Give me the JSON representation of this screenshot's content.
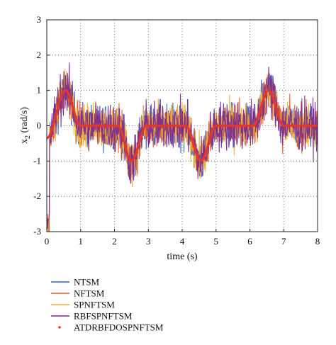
{
  "chart_data": {
    "type": "line",
    "title": "",
    "xlabel": "time (s)",
    "ylabel_main": "x",
    "ylabel_sub": "2",
    "ylabel_unit": " (rad/s)",
    "xlim": [
      0,
      8
    ],
    "ylim": [
      -3,
      3
    ],
    "xticks": [
      "0",
      "1",
      "2",
      "3",
      "4",
      "5",
      "6",
      "7",
      "8"
    ],
    "yticks": [
      "-3",
      "-2",
      "-1",
      "0",
      "1",
      "2",
      "3"
    ],
    "grid": true,
    "grid_style": "dotted",
    "legend_position": "below-left",
    "noise_amplitude_rad_s": 0.9,
    "series": [
      {
        "name": "NTSM",
        "color": "#3a5fc8",
        "style": "line",
        "kind": "noisy"
      },
      {
        "name": "NFTSM",
        "color": "#e0602a",
        "style": "line",
        "kind": "noisy"
      },
      {
        "name": "SPNFTSM",
        "color": "#f0b030",
        "style": "line",
        "kind": "noisy"
      },
      {
        "name": "RBFSPNFTSM",
        "color": "#7b2d8e",
        "style": "line",
        "kind": "noisy"
      },
      {
        "name": "ATDRBFDOSPNFTSM",
        "color": "#e8352a",
        "style": "dot",
        "kind": "trajectory",
        "x": [
          0,
          0.55,
          1.0,
          2.1,
          2.5,
          2.95,
          4.1,
          4.55,
          5.0,
          6.1,
          6.55,
          7.0,
          8.0
        ],
        "y": [
          -0.35,
          1.0,
          0.0,
          0.0,
          -1.0,
          0.0,
          0.0,
          -1.0,
          0.0,
          0.0,
          1.0,
          0.0,
          0.0
        ]
      }
    ]
  }
}
